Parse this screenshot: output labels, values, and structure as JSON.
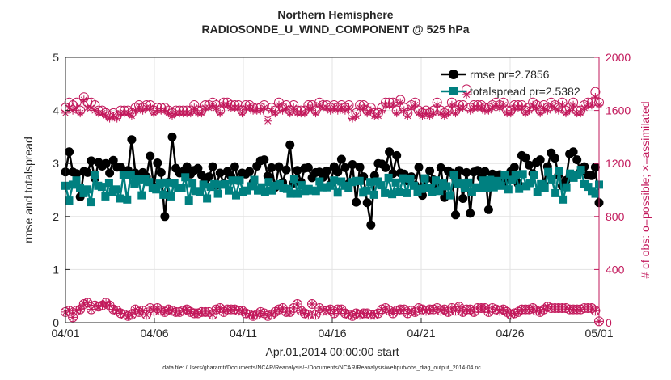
{
  "chart_data": {
    "type": "line",
    "title": "Northern Hemisphere",
    "subtitle": "RADIOSONDE_U_WIND_COMPONENT @ 525 hPa",
    "xlabel": "Apr.01,2014 00:00:00 start",
    "ylabel": "rmse and totalspread",
    "y2label": "# of obs: o=possible; ×=assimilated",
    "footnote": "data file: /Users/gharamti/Documents/NCAR/Reanalysis/~/Documents/NCAR/Reanalysis/webpub/obs_diag_output_2014-04.nc",
    "xlim": [
      0,
      30
    ],
    "ylim": [
      0,
      5
    ],
    "y2lim": [
      0,
      2000
    ],
    "x_ticks": [
      0,
      5,
      10,
      15,
      20,
      25,
      30
    ],
    "x_tick_labels": [
      "04/01",
      "04/06",
      "04/11",
      "04/16",
      "04/21",
      "04/26",
      "05/01"
    ],
    "y_ticks": [
      0,
      1,
      2,
      3,
      4,
      5
    ],
    "y_tick_labels": [
      "0",
      "1",
      "2",
      "3",
      "4",
      "5"
    ],
    "y2_ticks": [
      0,
      400,
      800,
      1200,
      1600,
      2000
    ],
    "y2_tick_labels": [
      "0",
      "400",
      "800",
      "1200",
      "1600",
      "2000"
    ],
    "grid": true,
    "legend_position": "top-right",
    "colors": {
      "rmse": "#000000",
      "totalspread": "#008080",
      "counts": "#c2185b",
      "axes": "#262626"
    },
    "series": [
      {
        "name": "rmse pr=2.7856",
        "axis": "left",
        "marker": "circle",
        "values": [
          2.84,
          3.22,
          2.84,
          2.81,
          2.37,
          2.85,
          2.83,
          3.05,
          2.72,
          3.02,
          2.95,
          3.0,
          2.82,
          3.06,
          2.93,
          2.93,
          2.85,
          2.87,
          3.45,
          2.82,
          2.75,
          2.83,
          2.75,
          3.14,
          2.56,
          3.01,
          2.83,
          2.0,
          2.65,
          3.5,
          2.91,
          2.82,
          2.85,
          2.94,
          2.8,
          2.87,
          2.91,
          2.78,
          2.68,
          2.75,
          2.94,
          2.59,
          2.82,
          2.62,
          2.85,
          2.76,
          2.94,
          2.68,
          2.82,
          2.8,
          2.85,
          2.64,
          2.95,
          3.05,
          3.07,
          2.76,
          2.92,
          2.55,
          2.94,
          2.64,
          2.88,
          3.35,
          2.63,
          2.87,
          2.65,
          2.91,
          2.92,
          2.73,
          2.83,
          2.84,
          2.74,
          2.86,
          2.6,
          2.94,
          2.84,
          3.08,
          2.92,
          2.62,
          2.98,
          2.27,
          2.93,
          2.75,
          2.26,
          1.84,
          2.77,
          3.0,
          2.99,
          2.92,
          3.22,
          2.81,
          3.15,
          2.82,
          2.8,
          2.67,
          2.75,
          2.59,
          2.93,
          2.4,
          2.71,
          2.86,
          2.69,
          2.59,
          2.92,
          2.36,
          2.86,
          2.82,
          2.03,
          2.87,
          2.34,
          2.83,
          2.06,
          2.84,
          2.87,
          2.73,
          2.85,
          2.13,
          2.8,
          2.67,
          2.79,
          2.64,
          2.71,
          2.85,
          2.93,
          2.62,
          3.15,
          3.11,
          2.97,
          2.81,
          3.02,
          3.07,
          2.6,
          2.94,
          3.2,
          3.1,
          2.78,
          2.58,
          2.68,
          3.18,
          3.22,
          3.07,
          2.85,
          2.94,
          2.78,
          2.77,
          2.93,
          2.26
        ]
      },
      {
        "name": "totalspread pr=2.5382",
        "axis": "left",
        "marker": "square",
        "values": [
          2.58,
          2.3,
          2.6,
          2.68,
          2.53,
          2.44,
          2.51,
          2.27,
          2.78,
          2.58,
          2.56,
          2.38,
          2.63,
          2.46,
          2.51,
          2.34,
          2.79,
          2.32,
          2.79,
          2.62,
          2.7,
          2.4,
          2.7,
          2.65,
          2.54,
          2.51,
          2.62,
          2.41,
          2.64,
          2.38,
          2.63,
          2.53,
          2.53,
          2.74,
          2.3,
          2.63,
          2.48,
          2.46,
          2.6,
          2.34,
          2.56,
          2.61,
          2.43,
          2.6,
          2.61,
          2.49,
          2.68,
          2.4,
          2.68,
          2.47,
          2.49,
          2.57,
          2.69,
          2.49,
          2.55,
          2.46,
          2.65,
          2.49,
          2.58,
          2.61,
          2.54,
          2.52,
          2.43,
          2.71,
          2.43,
          2.59,
          2.48,
          2.52,
          2.49,
          2.48,
          2.66,
          2.55,
          2.55,
          2.58,
          2.68,
          2.45,
          2.66,
          2.58,
          2.54,
          2.65,
          2.67,
          2.67,
          2.45,
          2.49,
          2.65,
          2.41,
          2.66,
          2.59,
          2.44,
          2.73,
          2.42,
          2.64,
          2.46,
          2.72,
          2.44,
          2.71,
          2.58,
          2.46,
          2.52,
          2.72,
          2.53,
          2.46,
          2.68,
          2.48,
          2.62,
          2.57,
          2.4,
          2.78,
          2.62,
          2.62,
          2.53,
          2.64,
          2.46,
          2.55,
          2.53,
          2.68,
          2.54,
          2.69,
          2.55,
          2.67,
          2.58,
          2.79,
          2.51,
          2.69,
          2.79,
          2.52,
          2.8,
          2.57,
          2.63,
          2.78,
          2.47,
          2.61,
          2.53,
          2.84,
          2.7,
          2.44,
          2.86,
          2.32,
          2.55,
          2.81,
          2.73,
          2.78,
          2.88,
          2.61,
          2.56,
          2.48,
          2.43,
          2.6
        ]
      },
      {
        "name": "obs possible",
        "axis": "right",
        "marker": "circle-open",
        "values": [
          1620,
          1660,
          1640,
          1660,
          1600,
          1700,
          1660,
          1660,
          1640,
          1600,
          1600,
          1580,
          1560,
          1580,
          1560,
          1600,
          1600,
          1600,
          1580,
          1620,
          1640,
          1620,
          1640,
          1640,
          1600,
          1620,
          1620,
          1620,
          1600,
          1580,
          1600,
          1600,
          1600,
          1600,
          1600,
          1640,
          1600,
          1600,
          1640,
          1640,
          1660,
          1640,
          1600,
          1660,
          1660,
          1640,
          1640,
          1640,
          1600,
          1640,
          1640,
          1620,
          1620,
          1620,
          1640,
          1580,
          1620,
          1600,
          1660,
          1620,
          1640,
          1600,
          1640,
          1600,
          1600,
          1600,
          1640,
          1640,
          1600,
          1660,
          1640,
          1640,
          1620,
          1640,
          1620,
          1640,
          1620,
          1640,
          1560,
          1580,
          1640,
          1640,
          1600,
          1620,
          1580,
          1580,
          1620,
          1660,
          1660,
          1660,
          1600,
          1680,
          1620,
          1580,
          1640,
          1660,
          1600,
          1580,
          1600,
          1580,
          1600,
          1660,
          1600,
          1580,
          1600,
          1660,
          1600,
          1640,
          1640,
          1760,
          1620,
          1640,
          1640,
          1640,
          1620,
          1620,
          1640,
          1660,
          1640,
          1660,
          1600,
          1600,
          1640,
          1640,
          1640,
          1600,
          1620,
          1660,
          1640,
          1600,
          1640,
          1620,
          1660,
          1640,
          1620,
          1660,
          1600,
          1620,
          1660,
          1600,
          1600,
          1640,
          1660,
          1660,
          1740,
          1660
        ]
      },
      {
        "name": "obs assimilated",
        "axis": "right",
        "marker": "star",
        "values": [
          1580,
          1620,
          1600,
          1620,
          1580,
          1680,
          1620,
          1620,
          1600,
          1580,
          1580,
          1560,
          1540,
          1560,
          1540,
          1580,
          1580,
          1580,
          1560,
          1600,
          1620,
          1600,
          1620,
          1620,
          1580,
          1600,
          1600,
          1600,
          1580,
          1560,
          1580,
          1580,
          1580,
          1580,
          1580,
          1620,
          1580,
          1580,
          1620,
          1620,
          1640,
          1620,
          1580,
          1640,
          1640,
          1620,
          1620,
          1620,
          1580,
          1620,
          1620,
          1600,
          1600,
          1600,
          1620,
          1520,
          1600,
          1580,
          1640,
          1600,
          1620,
          1580,
          1620,
          1580,
          1580,
          1580,
          1620,
          1620,
          1580,
          1640,
          1620,
          1620,
          1600,
          1620,
          1600,
          1620,
          1600,
          1620,
          1540,
          1560,
          1620,
          1620,
          1580,
          1600,
          1560,
          1560,
          1600,
          1640,
          1640,
          1640,
          1580,
          1660,
          1600,
          1560,
          1620,
          1640,
          1580,
          1560,
          1580,
          1560,
          1580,
          1640,
          1580,
          1560,
          1580,
          1640,
          1580,
          1620,
          1620,
          1720,
          1600,
          1620,
          1620,
          1620,
          1600,
          1600,
          1620,
          1640,
          1620,
          1640,
          1580,
          1580,
          1620,
          1620,
          1620,
          1580,
          1600,
          1640,
          1620,
          1580,
          1620,
          1600,
          1640,
          1620,
          1600,
          1640,
          1580,
          1600,
          1640,
          1580,
          1580,
          1620,
          1640,
          1640,
          1700,
          1640
        ]
      },
      {
        "name": "obs possible (low)",
        "axis": "right",
        "marker": "circle-open",
        "values": [
          80,
          90,
          40,
          90,
          100,
          140,
          150,
          100,
          130,
          120,
          130,
          150,
          130,
          100,
          90,
          70,
          60,
          50,
          60,
          100,
          80,
          90,
          60,
          110,
          90,
          110,
          90,
          80,
          100,
          90,
          80,
          80,
          90,
          100,
          80,
          70,
          70,
          80,
          80,
          80,
          60,
          100,
          110,
          80,
          100,
          100,
          100,
          90,
          90,
          70,
          60,
          50,
          60,
          80,
          70,
          50,
          60,
          80,
          100,
          110,
          80,
          80,
          110,
          140,
          90,
          70,
          60,
          140,
          60,
          110,
          90,
          90,
          100,
          70,
          100,
          100,
          70,
          60,
          50,
          70,
          60,
          70,
          70,
          60,
          60,
          70,
          100,
          110,
          90,
          70,
          90,
          100,
          100,
          70,
          90,
          80,
          110,
          100,
          90,
          100,
          100,
          110,
          90,
          100,
          80,
          110,
          90,
          120,
          80,
          100,
          100,
          80,
          110,
          110,
          110,
          80,
          110,
          100,
          90,
          100,
          80,
          60,
          70,
          80,
          100,
          100,
          100,
          110,
          90,
          80,
          100,
          120,
          110,
          110,
          110,
          110,
          110,
          100,
          100,
          100,
          100,
          110,
          110,
          110,
          90,
          10
        ]
      },
      {
        "name": "obs assimilated (low)",
        "axis": "right",
        "marker": "star",
        "values": [
          80,
          90,
          40,
          90,
          100,
          140,
          150,
          100,
          130,
          120,
          130,
          150,
          130,
          100,
          90,
          70,
          60,
          50,
          60,
          100,
          80,
          90,
          60,
          110,
          90,
          110,
          90,
          80,
          100,
          90,
          80,
          80,
          90,
          100,
          80,
          70,
          70,
          80,
          80,
          80,
          60,
          100,
          110,
          80,
          100,
          100,
          100,
          90,
          90,
          70,
          60,
          50,
          60,
          80,
          70,
          50,
          60,
          80,
          100,
          110,
          80,
          80,
          110,
          140,
          90,
          70,
          60,
          140,
          60,
          110,
          90,
          90,
          100,
          70,
          100,
          100,
          70,
          60,
          50,
          70,
          60,
          70,
          70,
          60,
          60,
          70,
          100,
          110,
          90,
          70,
          90,
          100,
          100,
          70,
          90,
          80,
          110,
          100,
          90,
          100,
          100,
          110,
          90,
          100,
          80,
          110,
          90,
          120,
          80,
          100,
          100,
          80,
          110,
          110,
          110,
          80,
          110,
          100,
          90,
          100,
          80,
          60,
          70,
          80,
          100,
          100,
          100,
          110,
          90,
          80,
          100,
          120,
          110,
          110,
          110,
          110,
          110,
          100,
          100,
          100,
          100,
          110,
          110,
          110,
          90,
          10
        ]
      }
    ]
  }
}
